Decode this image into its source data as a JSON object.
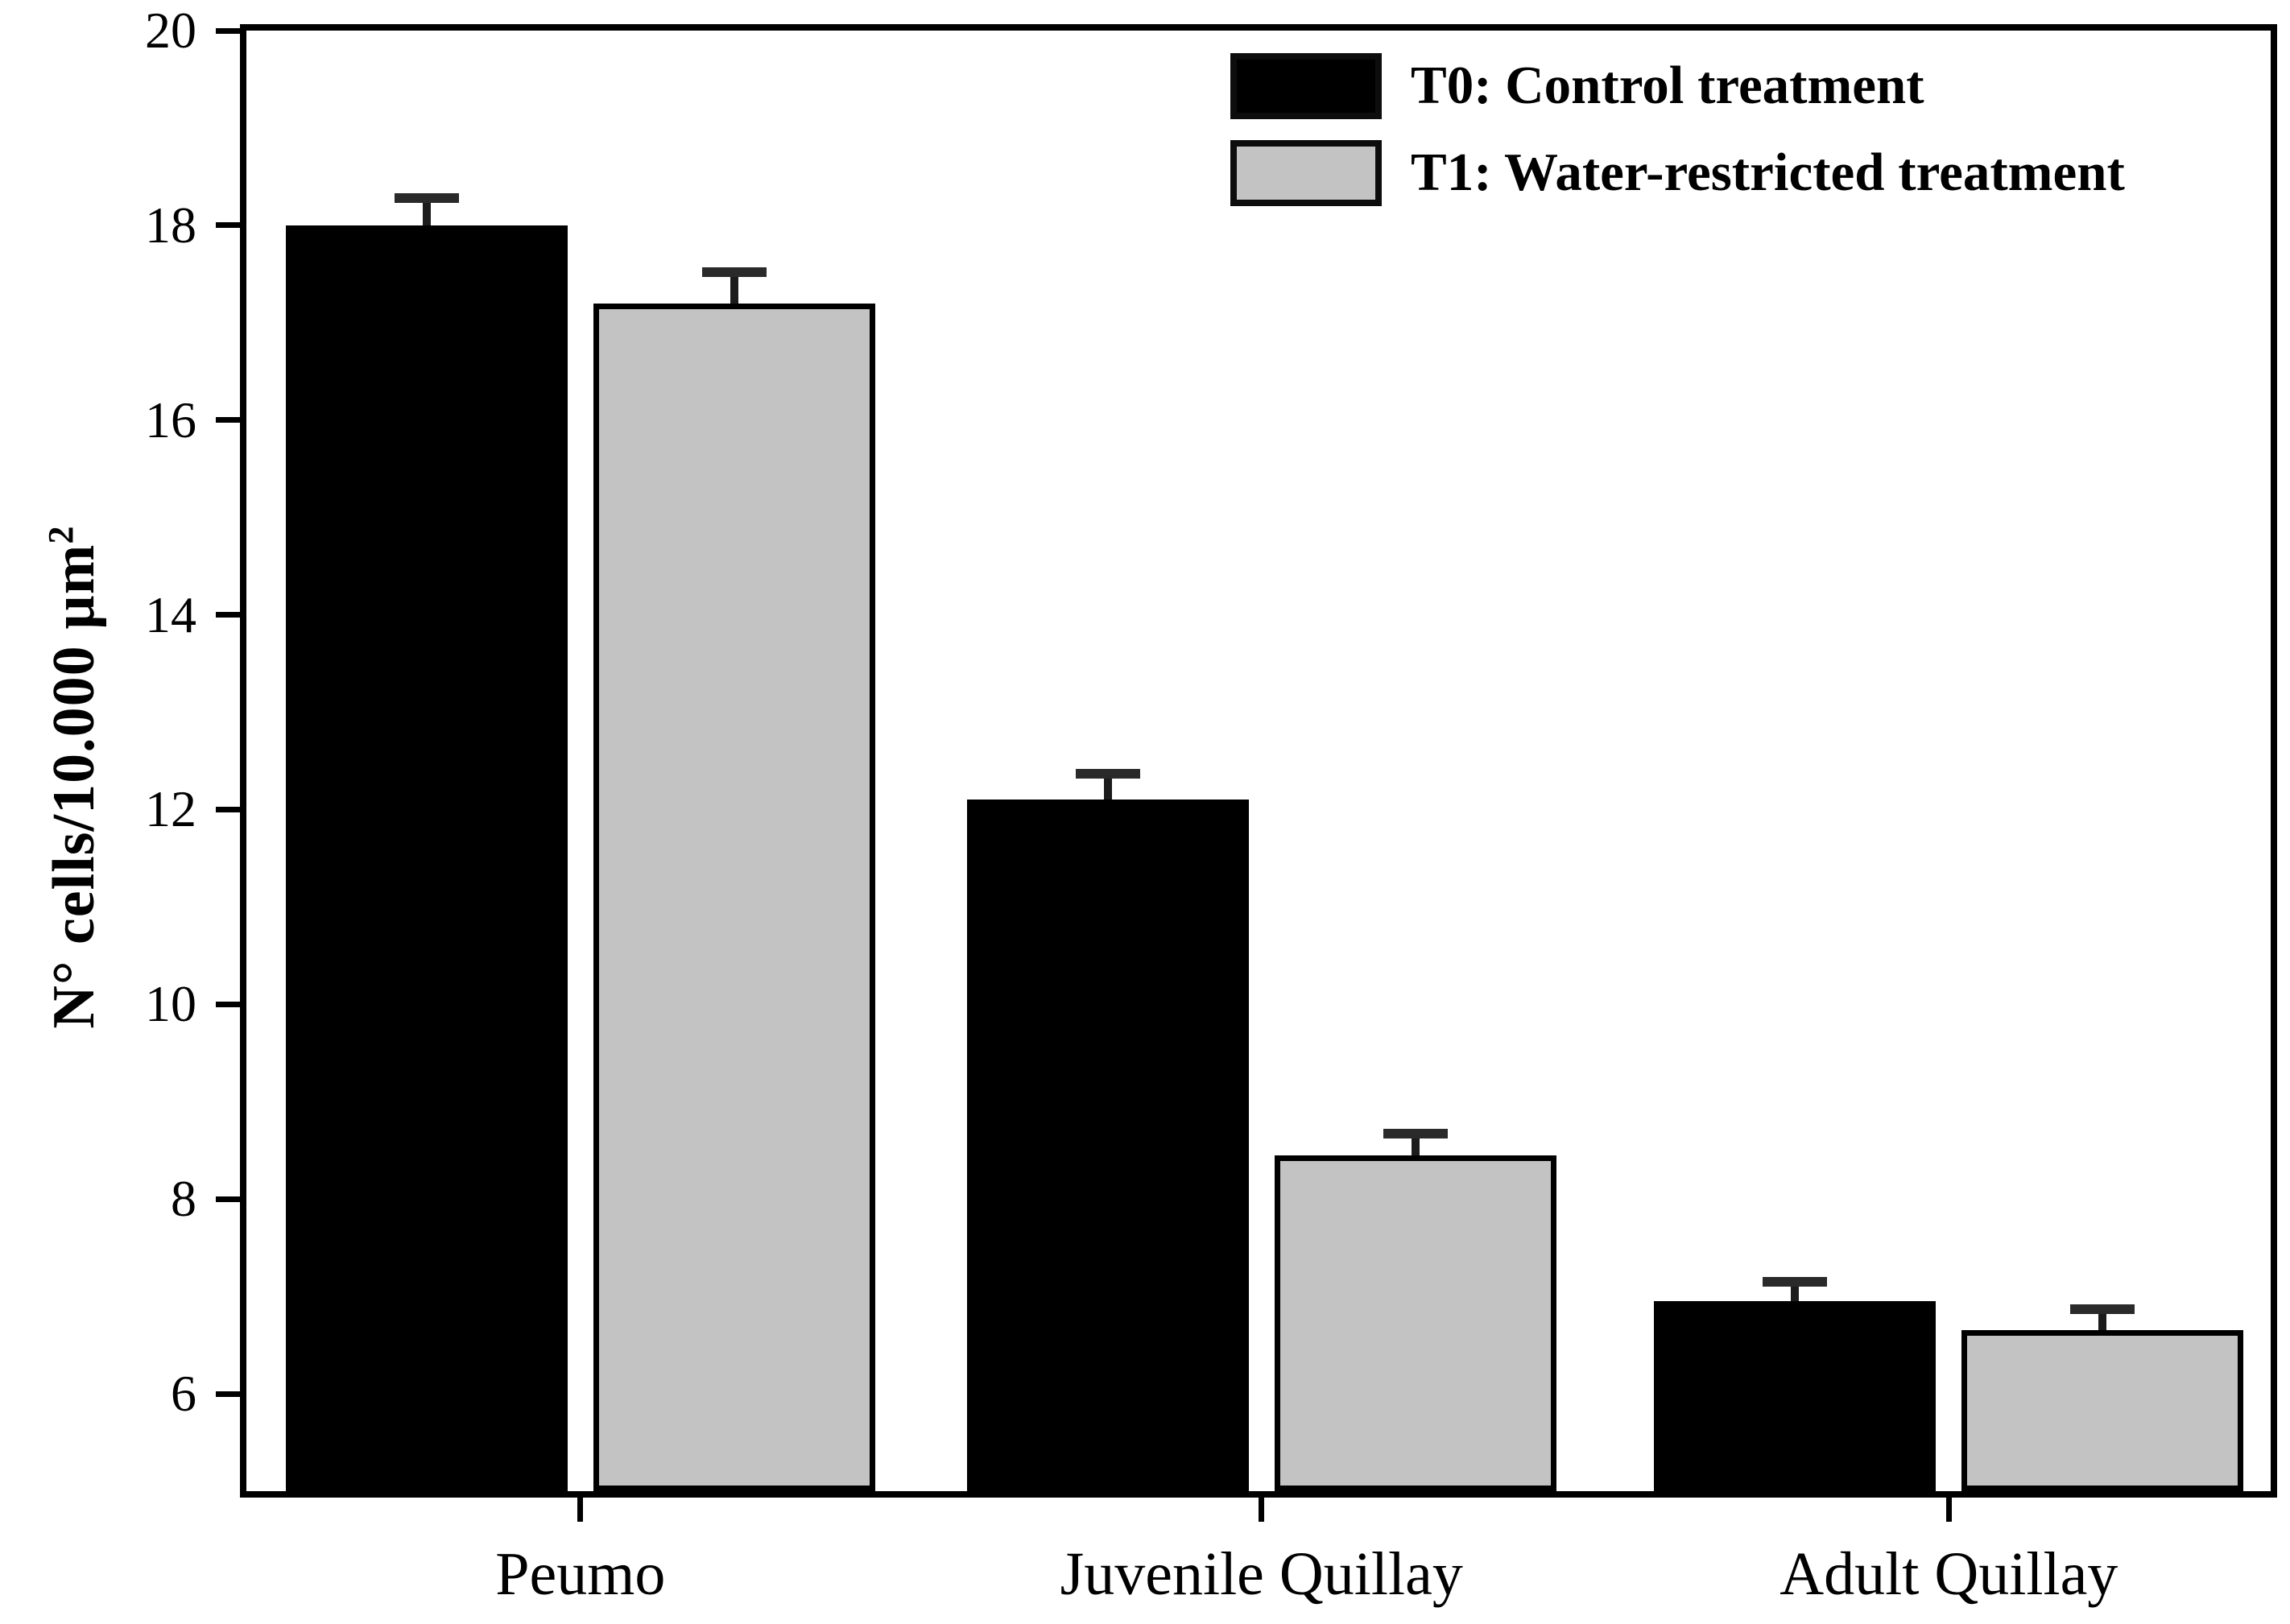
{
  "chart_data": {
    "type": "bar",
    "title": "",
    "categories": [
      "Peumo",
      "Juvenile Quillay",
      "Adult Quillay"
    ],
    "series": [
      {
        "key": "t0",
        "name": "T0: Control treatment",
        "color": "#000000",
        "values": [
          18.0,
          12.1,
          6.95
        ],
        "errors": [
          0.28,
          0.27,
          0.2
        ]
      },
      {
        "key": "t1",
        "name": "T1: Water-restricted treatment",
        "color": "#c3c3c3",
        "values": [
          17.2,
          8.45,
          6.65
        ],
        "errors": [
          0.32,
          0.22,
          0.22
        ]
      }
    ],
    "xlabel": "",
    "ylabel": "N° cells/10.000 µm",
    "ylabel_superscript": "2",
    "ylim": [
      5,
      20
    ],
    "yticks": [
      6,
      8,
      10,
      12,
      14,
      16,
      18,
      20
    ],
    "grid": false,
    "legend_position": "top-right",
    "bar_edge_color": "#000000",
    "error_bar_color": "#1c1c1c",
    "frame_color": "#000000",
    "background_color": "#ffffff"
  }
}
